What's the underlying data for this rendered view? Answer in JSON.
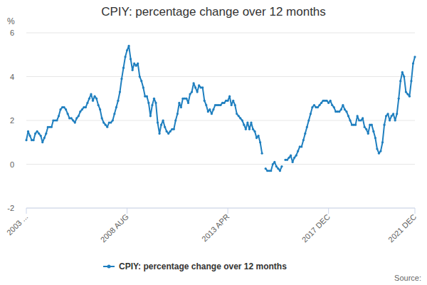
{
  "chart_data": {
    "type": "line",
    "title": "CPIY: percentage change over 12 months",
    "y_label": "%",
    "source": "Source:",
    "categories": [
      "2003 ...",
      null,
      null,
      null,
      null,
      null,
      null,
      null,
      null,
      null,
      null,
      null,
      null,
      null,
      null,
      null,
      null,
      null,
      null,
      null,
      null,
      null,
      null,
      null,
      null,
      null,
      null,
      null,
      null,
      null,
      null,
      null,
      null,
      null,
      null,
      null,
      null,
      null,
      null,
      null,
      null,
      null,
      null,
      null,
      null,
      null,
      null,
      null,
      null,
      null,
      null,
      null,
      null,
      null,
      null,
      null,
      "2008 AUG",
      null,
      null,
      null,
      null,
      null,
      null,
      null,
      null,
      null,
      null,
      null,
      null,
      null,
      null,
      null,
      null,
      null,
      null,
      null,
      null,
      null,
      null,
      null,
      null,
      null,
      null,
      null,
      null,
      null,
      null,
      null,
      null,
      null,
      null,
      null,
      null,
      null,
      null,
      null,
      null,
      null,
      null,
      null,
      null,
      null,
      null,
      null,
      null,
      null,
      null,
      null,
      null,
      null,
      null,
      null,
      "2013 APR",
      null,
      null,
      null,
      null,
      null,
      null,
      null,
      null,
      null,
      null,
      null,
      null,
      null,
      null,
      null,
      null,
      null,
      null,
      null,
      null,
      null,
      null,
      null,
      null,
      null,
      null,
      null,
      null,
      null,
      null,
      null,
      null,
      null,
      null,
      null,
      null,
      null,
      null,
      null,
      null,
      null,
      null,
      null,
      null,
      null,
      null,
      null,
      null,
      null,
      null,
      null,
      null,
      null,
      null,
      null,
      "2017 DEC",
      null,
      null,
      null,
      null,
      null,
      null,
      null,
      null,
      null,
      null,
      null,
      null,
      null,
      null,
      null,
      null,
      null,
      null,
      null,
      null,
      null,
      null,
      null,
      null,
      null,
      null,
      null,
      null,
      null,
      null,
      null,
      null,
      null,
      null,
      null,
      null,
      null,
      null,
      null,
      null,
      null,
      null,
      null,
      null,
      null,
      null,
      null,
      "2021 DEC"
    ],
    "series": [
      {
        "name": "CPIY: percentage change over 12 months",
        "color": "#1f7fbf",
        "marker": "circle",
        "values": [
          1.1,
          1.5,
          1.3,
          1.1,
          1.1,
          1.4,
          1.5,
          1.4,
          1.3,
          1.0,
          1.2,
          1.4,
          1.7,
          1.7,
          1.7,
          2.0,
          2.0,
          2.0,
          2.2,
          2.5,
          2.6,
          2.6,
          2.5,
          2.3,
          2.1,
          2.1,
          2.0,
          1.9,
          2.1,
          2.2,
          2.4,
          2.5,
          2.6,
          2.6,
          2.8,
          3.0,
          3.2,
          2.9,
          3.1,
          3.0,
          2.7,
          2.5,
          2.1,
          1.9,
          1.8,
          1.7,
          1.9,
          1.9,
          2.0,
          2.3,
          2.6,
          2.9,
          3.3,
          3.9,
          4.4,
          4.9,
          5.2,
          5.4,
          4.8,
          4.3,
          4.6,
          4.5,
          4.6,
          4.0,
          3.8,
          3.5,
          3.1,
          3.1,
          2.8,
          2.2,
          2.7,
          3.0,
          2.8,
          1.9,
          1.4,
          1.8,
          2.0,
          1.7,
          1.5,
          1.4,
          1.5,
          1.6,
          1.6,
          2.0,
          2.3,
          2.8,
          2.6,
          3.0,
          3.0,
          3.0,
          2.8,
          3.2,
          3.3,
          3.7,
          3.5,
          3.3,
          3.6,
          3.5,
          3.5,
          2.9,
          2.7,
          2.4,
          2.5,
          2.3,
          2.5,
          2.7,
          2.7,
          2.7,
          2.7,
          2.8,
          2.8,
          2.9,
          2.9,
          3.1,
          2.7,
          2.9,
          2.7,
          2.3,
          2.2,
          2.1,
          2.0,
          1.8,
          1.6,
          1.9,
          1.6,
          1.9,
          1.6,
          1.5,
          1.2,
          1.3,
          1.0,
          0.5,
          null,
          -0.2,
          -0.3,
          -0.3,
          -0.3,
          0.0,
          0.1,
          -0.1,
          -0.2,
          -0.3,
          -0.1,
          null,
          0.2,
          0.2,
          0.3,
          0.4,
          0.1,
          0.3,
          0.4,
          0.6,
          0.8,
          0.8,
          1.1,
          1.4,
          1.7,
          2.0,
          2.3,
          2.6,
          2.7,
          2.6,
          2.6,
          2.7,
          2.8,
          2.9,
          2.9,
          2.9,
          2.8,
          2.9,
          2.7,
          2.6,
          2.4,
          2.4,
          2.4,
          2.5,
          2.7,
          2.5,
          2.4,
          2.2,
          2.0,
          1.8,
          1.8,
          1.8,
          2.2,
          2.0,
          2.0,
          2.1,
          1.7,
          1.6,
          1.4,
          1.8,
          1.8,
          1.5,
          1.2,
          0.7,
          0.5,
          0.6,
          1.0,
          1.8,
          2.2,
          2.3,
          2.0,
          2.2,
          2.3,
          2.0,
          2.3,
          3.0,
          3.8,
          4.2,
          4.0,
          3.3,
          3.2,
          3.1,
          3.8,
          4.6,
          4.9
        ]
      }
    ],
    "ylim": [
      -2,
      6
    ],
    "yticks": [
      -2,
      0,
      2,
      4,
      6
    ],
    "grid": true,
    "legend": "bottom"
  }
}
